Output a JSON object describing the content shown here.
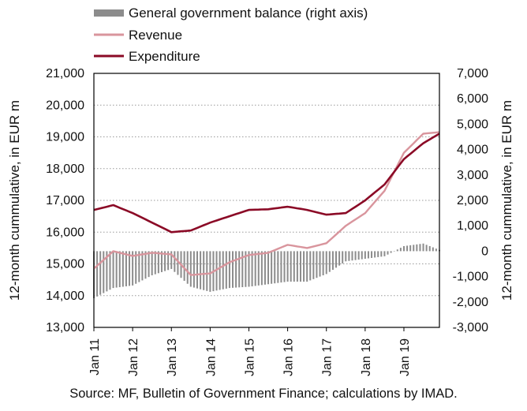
{
  "chart_data": {
    "type": "line",
    "legend": [
      {
        "name": "General government balance (right axis)",
        "kind": "bar",
        "color": "#8c8c8c"
      },
      {
        "name": "Revenue",
        "kind": "line",
        "color": "#d9959d"
      },
      {
        "name": "Expenditure",
        "kind": "line",
        "color": "#8b0a26"
      }
    ],
    "legend_position": "top-left",
    "ylabel_left": "12-month cummulative, in EUR m",
    "ylabel_right": "12-month cummulative, in EUR m",
    "y_left_lim": [
      13000,
      21000
    ],
    "y_right_lim": [
      -3000,
      7000
    ],
    "y_left_ticks": [
      "13,000",
      "14,000",
      "15,000",
      "16,000",
      "17,000",
      "18,000",
      "19,000",
      "20,000",
      "21,000"
    ],
    "y_right_ticks": [
      "-3,000",
      "-2,000",
      "-1,000",
      "0",
      "1,000",
      "2,000",
      "3,000",
      "4,000",
      "5,000",
      "6,000",
      "7,000"
    ],
    "x_ticks": [
      "Jan 11",
      "Jan 12",
      "Jan 13",
      "Jan 14",
      "Jan 15",
      "Jan 16",
      "Jan 17",
      "Jan 18",
      "Jan 19"
    ],
    "x_range": [
      "Jan 11",
      "Dec 19"
    ],
    "grid": "horizontal dotted",
    "series": [
      {
        "name": "Revenue",
        "axis": "left",
        "x": [
          "Jan 11",
          "Jul 11",
          "Jan 12",
          "Jul 12",
          "Jan 13",
          "Jul 13",
          "Jan 14",
          "Jul 14",
          "Jan 15",
          "Jul 15",
          "Jan 16",
          "Jul 16",
          "Jan 17",
          "Jul 17",
          "Jan 18",
          "Jul 18",
          "Jan 19",
          "Jul 19",
          "Dec 19"
        ],
        "values": [
          14850,
          15400,
          15250,
          15350,
          15300,
          14650,
          14700,
          15050,
          15280,
          15350,
          15600,
          15500,
          15650,
          16200,
          16600,
          17300,
          18500,
          19100,
          19150
        ]
      },
      {
        "name": "Expenditure",
        "axis": "left",
        "x": [
          "Jan 11",
          "Jul 11",
          "Jan 12",
          "Jul 12",
          "Jan 13",
          "Jul 13",
          "Jan 14",
          "Jul 14",
          "Jan 15",
          "Jul 15",
          "Jan 16",
          "Jul 16",
          "Jan 17",
          "Jul 17",
          "Jan 18",
          "Jul 18",
          "Jan 19",
          "Jul 19",
          "Dec 19"
        ],
        "values": [
          16700,
          16850,
          16600,
          16300,
          16000,
          16050,
          16300,
          16500,
          16700,
          16720,
          16800,
          16700,
          16550,
          16600,
          17000,
          17500,
          18300,
          18800,
          19100
        ]
      },
      {
        "name": "General government balance (right axis)",
        "axis": "right",
        "type": "bar",
        "x": [
          "Jan 11",
          "Jul 11",
          "Jan 12",
          "Jul 12",
          "Jan 13",
          "Jul 13",
          "Jan 14",
          "Jul 14",
          "Jan 15",
          "Jul 15",
          "Jan 16",
          "Jul 16",
          "Jan 17",
          "Jul 17",
          "Jan 18",
          "Jul 18",
          "Jan 19",
          "Jul 19",
          "Dec 19"
        ],
        "values": [
          -1850,
          -1450,
          -1350,
          -950,
          -700,
          -1400,
          -1600,
          -1450,
          -1400,
          -1300,
          -1200,
          -1200,
          -900,
          -400,
          -300,
          -200,
          200,
          300,
          50
        ]
      }
    ],
    "source": "Source: MF, Bulletin of Government Finance; calculations by IMAD."
  }
}
